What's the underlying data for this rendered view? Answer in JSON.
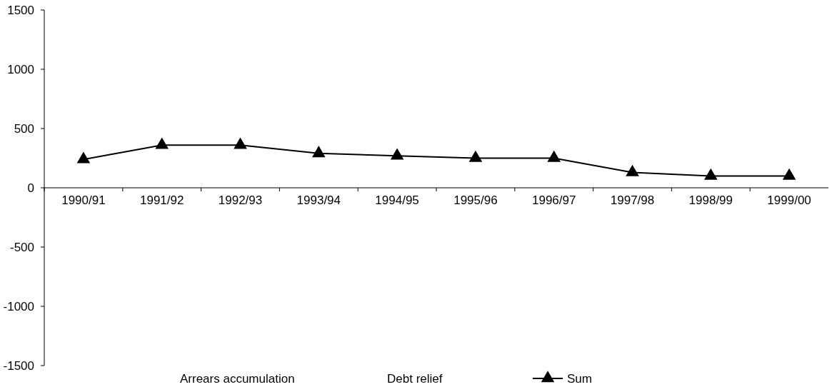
{
  "chart_data": {
    "type": "line",
    "categories": [
      "1990/91",
      "1991/92",
      "1992/93",
      "1993/94",
      "1994/95",
      "1995/96",
      "1996/97",
      "1997/98",
      "1998/99",
      "1999/00"
    ],
    "series": [
      {
        "name": "Arrears accumulation",
        "type": "bar",
        "values": [
          null,
          null,
          null,
          null,
          null,
          null,
          null,
          null,
          null,
          null
        ]
      },
      {
        "name": "Debt relief",
        "type": "bar",
        "values": [
          null,
          null,
          null,
          null,
          null,
          null,
          null,
          null,
          null,
          null
        ]
      },
      {
        "name": "Sum",
        "color": "#000000",
        "marker": "triangle",
        "values": [
          240,
          360,
          360,
          290,
          270,
          250,
          250,
          130,
          100,
          100
        ]
      }
    ],
    "ylim": [
      -1500,
      1500
    ],
    "yticks": [
      -1500,
      -1000,
      -500,
      0,
      500,
      1000,
      1500
    ],
    "grid": false,
    "legend": "bottom"
  }
}
